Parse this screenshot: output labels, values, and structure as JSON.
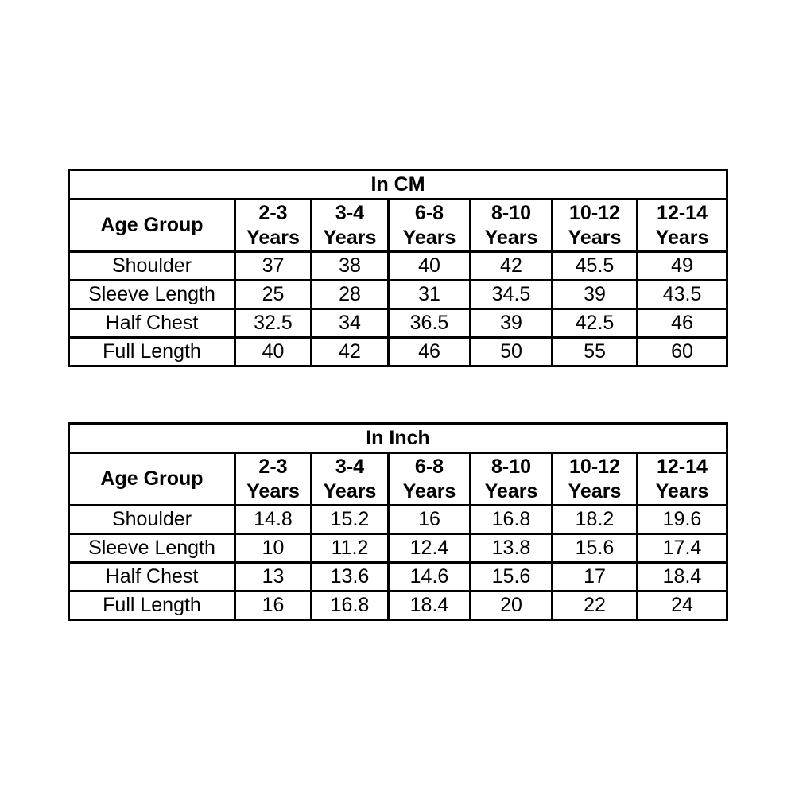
{
  "page": {
    "background_color": "#ffffff",
    "text_color": "#000000",
    "border_color": "#000000"
  },
  "tables": [
    {
      "title": "In CM",
      "corner_label": "Age Group",
      "columns": [
        {
          "range": "2-3",
          "suffix": "Years"
        },
        {
          "range": "3-4",
          "suffix": "Years"
        },
        {
          "range": "6-8",
          "suffix": "Years"
        },
        {
          "range": "8-10",
          "suffix": "Years"
        },
        {
          "range": "10-12",
          "suffix": "Years"
        },
        {
          "range": "12-14",
          "suffix": "Years"
        }
      ],
      "rows": [
        {
          "label": "Shoulder",
          "values": [
            "37",
            "38",
            "40",
            "42",
            "45.5",
            "49"
          ]
        },
        {
          "label": "Sleeve Length",
          "values": [
            "25",
            "28",
            "31",
            "34.5",
            "39",
            "43.5"
          ]
        },
        {
          "label": "Half Chest",
          "values": [
            "32.5",
            "34",
            "36.5",
            "39",
            "42.5",
            "46"
          ]
        },
        {
          "label": "Full Length",
          "values": [
            "40",
            "42",
            "46",
            "50",
            "55",
            "60"
          ]
        }
      ]
    },
    {
      "title": "In Inch",
      "corner_label": "Age Group",
      "columns": [
        {
          "range": "2-3",
          "suffix": "Years"
        },
        {
          "range": "3-4",
          "suffix": "Years"
        },
        {
          "range": "6-8",
          "suffix": "Years"
        },
        {
          "range": "8-10",
          "suffix": "Years"
        },
        {
          "range": "10-12",
          "suffix": "Years"
        },
        {
          "range": "12-14",
          "suffix": "Years"
        }
      ],
      "rows": [
        {
          "label": "Shoulder",
          "values": [
            "14.8",
            "15.2",
            "16",
            "16.8",
            "18.2",
            "19.6"
          ]
        },
        {
          "label": "Sleeve Length",
          "values": [
            "10",
            "11.2",
            "12.4",
            "13.8",
            "15.6",
            "17.4"
          ]
        },
        {
          "label": "Half Chest",
          "values": [
            "13",
            "13.6",
            "14.6",
            "15.6",
            "17",
            "18.4"
          ]
        },
        {
          "label": "Full Length",
          "values": [
            "16",
            "16.8",
            "18.4",
            "20",
            "22",
            "24"
          ]
        }
      ]
    }
  ]
}
